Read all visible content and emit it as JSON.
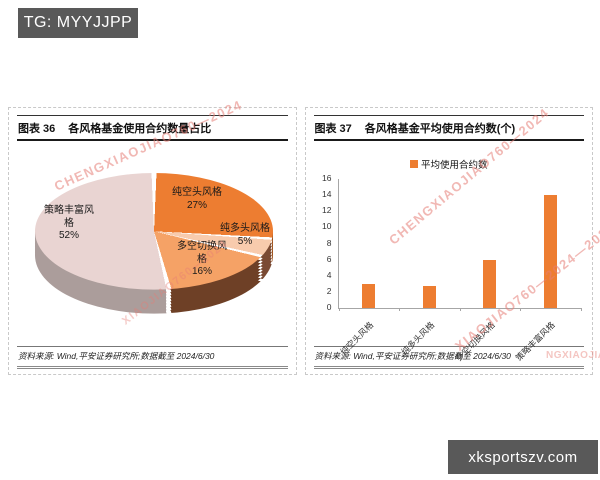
{
  "page": {
    "top_badge": "TG: MYYJJPP",
    "bottom_badge": "xksportszv.com",
    "watermarks": [
      "CHENGXIAOJIAO760—2024",
      "CHENGXIAOJIAO760—2024",
      "XIAOJIAO760—2024—2023",
      "NGXIAOJIAO760",
      "XIAOJIAO760—2024"
    ]
  },
  "figures": {
    "fig36": {
      "number": "图表 36",
      "title": "各风格基金使用合约数量占比",
      "source": "资料来源: Wind,平安证券研究所;数据截至 2024/6/30"
    },
    "fig37": {
      "number": "图表 37",
      "title": "各风格基金平均使用合约数(个)",
      "source": "资料来源: Wind,平安证券研究所;数据截至 2024/6/30"
    }
  },
  "chart_data": [
    {
      "type": "pie",
      "style": "3d",
      "title": "各风格基金使用合约数量占比",
      "labels": [
        "纯空头风格",
        "纯多头风格",
        "多空切换风格",
        "策略丰富风格"
      ],
      "values": [
        27,
        5,
        16,
        52
      ],
      "unit": "%",
      "colors": [
        "#ED7D31",
        "#F8CBAD",
        "#F5A266",
        "#E9D4D2"
      ],
      "side_colors": [
        "#9C4E17",
        "#7A4A33",
        "#6E4026",
        "#AB9D9B"
      ],
      "start_angle_deg": 0,
      "direction": "clockwise",
      "legend_position": "none"
    },
    {
      "type": "bar",
      "title": "各风格基金平均使用合约数(个)",
      "legend": [
        "平均使用合约数"
      ],
      "legend_position": "top",
      "categories": [
        "纯空头风格",
        "纯多头风格",
        "多空切换风格",
        "策略丰富风格"
      ],
      "values": [
        3,
        2.7,
        6,
        14
      ],
      "ylim": [
        0,
        16
      ],
      "ytick_step": 2,
      "bar_color": "#ED7D31",
      "grid": false
    }
  ]
}
